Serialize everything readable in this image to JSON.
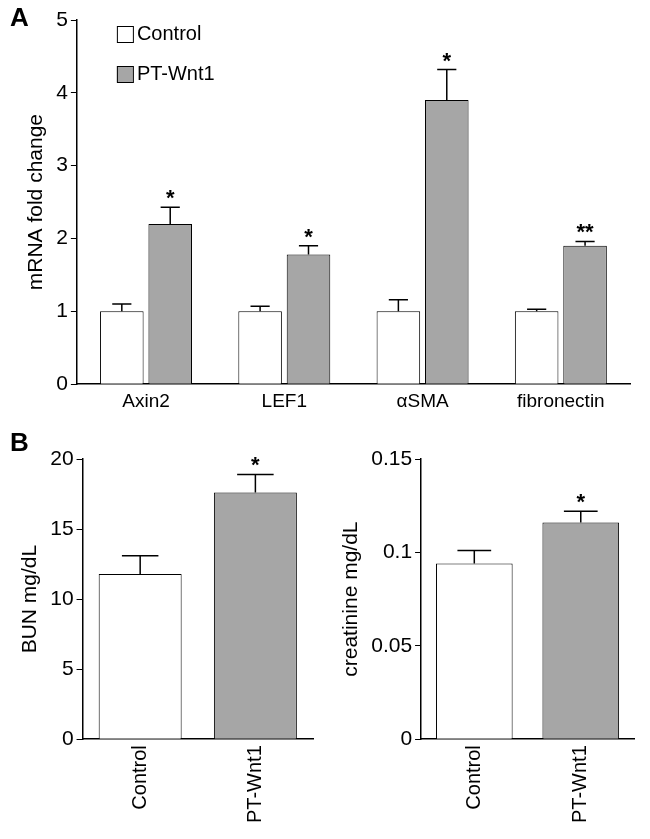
{
  "chart_data": [
    {
      "type": "bar",
      "title": "A",
      "ylabel": "mRNA fold change",
      "categories": [
        "Axin2",
        "LEF1",
        "αSMA",
        "fibronectin"
      ],
      "series": [
        {
          "name": "Control",
          "color": "#ffffff",
          "values": [
            1,
            1,
            1,
            1
          ],
          "errors": [
            0.1,
            0.07,
            0.16,
            0.03
          ]
        },
        {
          "name": "PT-Wnt1",
          "color": "#a6a6a6",
          "values": [
            2.2,
            1.78,
            3.9,
            1.9
          ],
          "errors": [
            0.23,
            0.12,
            0.42,
            0.06
          ],
          "annotations": [
            "*",
            "*",
            "*",
            "**"
          ]
        }
      ],
      "ylim": [
        0,
        5
      ],
      "yticks": [
        0,
        1,
        2,
        3,
        4,
        5
      ],
      "grid": false,
      "legend": "upper left"
    },
    {
      "type": "bar",
      "title": "B",
      "ylabel": "BUN mg/dL",
      "categories": [
        "Control",
        "PT-Wnt1"
      ],
      "values": [
        11.8,
        17.6
      ],
      "errors": [
        1.3,
        1.3
      ],
      "annotations": [
        null,
        "*"
      ],
      "colors": [
        "#ffffff",
        "#a6a6a6"
      ],
      "ylim": [
        0,
        20
      ],
      "yticks": [
        0,
        5,
        10,
        15,
        20
      ],
      "grid": false
    },
    {
      "type": "bar",
      "ylabel": "creatinine mg/dL",
      "categories": [
        "Control",
        "PT-Wnt1"
      ],
      "values": [
        0.094,
        0.116
      ],
      "errors": [
        0.007,
        0.006
      ],
      "annotations": [
        null,
        "*"
      ],
      "colors": [
        "#ffffff",
        "#a6a6a6"
      ],
      "ylim": [
        0,
        0.15
      ],
      "yticks": [
        0,
        0.05,
        0.1,
        0.15
      ],
      "grid": false
    }
  ]
}
